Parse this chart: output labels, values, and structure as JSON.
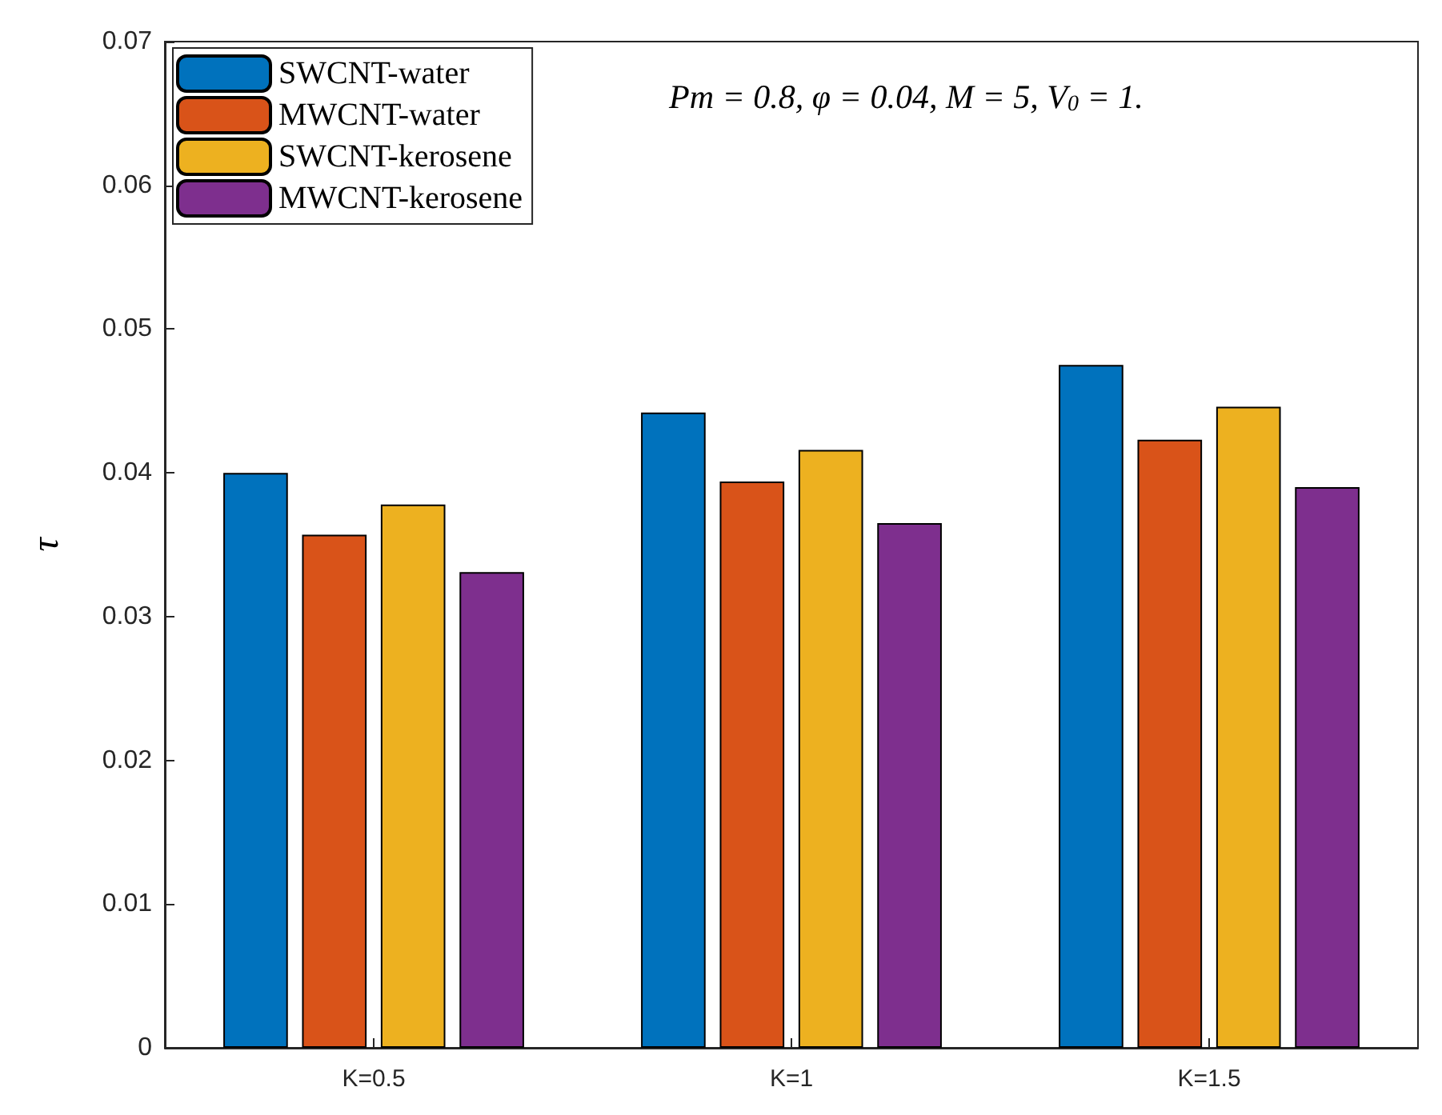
{
  "chart_data": {
    "type": "bar",
    "ylabel": "τ",
    "categories": [
      "K=0.5",
      "K=1",
      "K=1.5"
    ],
    "series": [
      {
        "name": "SWCNT-water",
        "color": "#0072bd",
        "values": [
          0.04,
          0.0442,
          0.0475
        ]
      },
      {
        "name": "MWCNT-water",
        "color": "#d95319",
        "values": [
          0.0357,
          0.0394,
          0.0423
        ]
      },
      {
        "name": "SWCNT-kerosene",
        "color": "#edb120",
        "values": [
          0.0378,
          0.0416,
          0.0446
        ]
      },
      {
        "name": "MWCNT-kerosene",
        "color": "#7e2f8e",
        "values": [
          0.0331,
          0.0365,
          0.039
        ]
      }
    ],
    "ylim": [
      0,
      0.07
    ],
    "yticks": [
      0,
      0.01,
      0.02,
      0.03,
      0.04,
      0.05,
      0.06,
      0.07
    ],
    "grid": false,
    "legend": "top left",
    "annotations": [
      "Pm = 0.8, φ = 0.04, M = 5, V$_{0}$ = 1."
    ]
  }
}
